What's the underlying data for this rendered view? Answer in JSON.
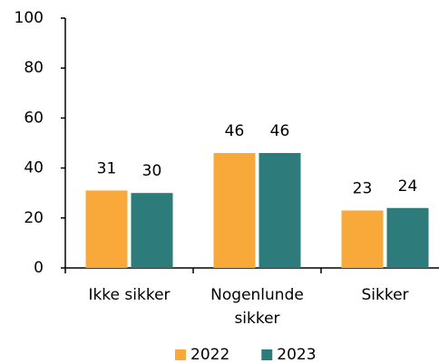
{
  "chart_data": {
    "type": "bar",
    "categories": [
      "Ikke sikker",
      "Nogenlunde sikker",
      "Sikker"
    ],
    "series": [
      {
        "name": "2022",
        "color": "#F9A93A",
        "values": [
          31,
          46,
          23
        ]
      },
      {
        "name": "2023",
        "color": "#2E7B7B",
        "values": [
          30,
          46,
          24
        ]
      }
    ],
    "ylim": [
      0,
      100
    ],
    "yticks": [
      0,
      20,
      40,
      60,
      80,
      100
    ],
    "grid": false,
    "legend": "bottom"
  }
}
